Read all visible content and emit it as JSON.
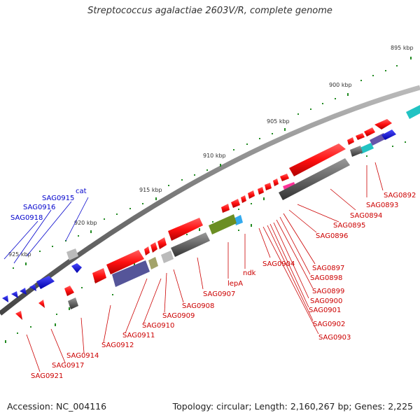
{
  "title": "Streptococcus agalactiae 2603V/R, complete genome",
  "accession": "Accession: NC_004116",
  "topology": "Topology: circular; Length: 2,160,267 bp; Genes: 2,225",
  "kbp_ticks": [
    "895 kbp",
    "900 kbp",
    "905 kbp",
    "910 kbp",
    "915 kbp",
    "920 kbp",
    "925 kbp"
  ],
  "colors": {
    "red_gene": "#ff1a1a",
    "blue_gene": "#0000dd",
    "gray_gene": "#666666",
    "olive_gene": "#6b8e23",
    "cyan_gene": "#22c3c3",
    "magenta_gene": "#ff3399",
    "slate_gene": "#555599",
    "backbone": "#777777",
    "tick_green": "#228b22",
    "red_label": "#cc0000",
    "blue_label": "#0000cc"
  },
  "labels": {
    "red": [
      "SAG0892",
      "SAG0893",
      "SAG0894",
      "SAG0895",
      "SAG0896",
      "SAG0897",
      "SAG0898",
      "SAG0899",
      "SAG0900",
      "SAG0901",
      "SAG0902",
      "SAG0903",
      "SAG0904",
      "ndk",
      "lepA",
      "SAG0907",
      "SAG0908",
      "SAG0909",
      "SAG0910",
      "SAG0911",
      "SAG0912",
      "SAG0914",
      "SAG0917",
      "SAG0921"
    ],
    "blue": [
      "cat",
      "SAG0915",
      "SAG0916",
      "SAG0918"
    ]
  }
}
